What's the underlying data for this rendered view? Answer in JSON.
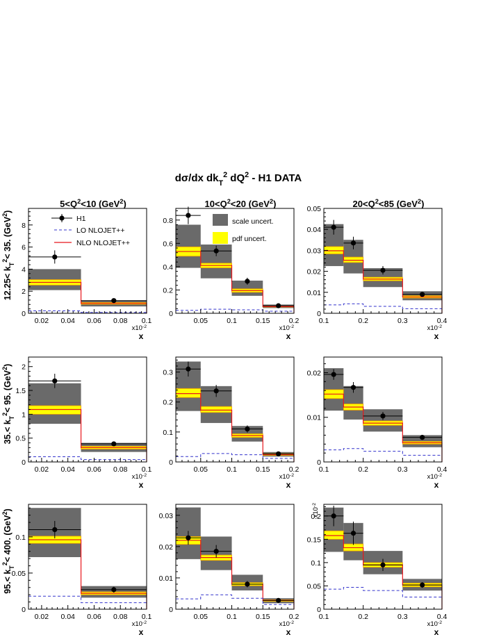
{
  "title": "dσ/dx dk_T^2 dQ^2 - H1 DATA",
  "column_titles": [
    "5<Q^2<10 (GeV^2)",
    "10<Q^2<20 (GeV^2)",
    "20<Q^2<85 (GeV^2)"
  ],
  "row_titles": [
    "12.25< k_T^2< 35. (GeV^2)",
    "35.< k_T^2< 95. (GeV^2)",
    "95.< k_T^2< 400. (GeV^2)"
  ],
  "x_label": "x",
  "x_multiplier": "x10^-2",
  "legend": {
    "h1": "H1",
    "lo": "LO   NLOJET++",
    "nlo": "NLO NLOJET++",
    "scale": "scale uncert.",
    "pdf": "pdf uncert."
  },
  "colors": {
    "data": "#000000",
    "lo": "#3333cc",
    "nlo": "#e8161c",
    "scale_band": "#6a6a6a",
    "pdf_band": "#ffff00",
    "nlo_band_edge": "#ee9900"
  },
  "chart_data": [
    {
      "type": "bar",
      "row": 0,
      "col": 0,
      "xlim": [
        0.01,
        0.1
      ],
      "ylim": [
        0,
        9.5
      ],
      "xticks": [
        0.02,
        0.04,
        0.06,
        0.08,
        0.1
      ],
      "xtick_labels": [
        "0.02",
        "0.04",
        "0.06",
        "0.08",
        "0.1"
      ],
      "yticks": [
        0,
        2,
        4,
        6,
        8
      ],
      "ytick_labels": [
        "0",
        "2",
        "4",
        "6",
        "8"
      ],
      "y_multiplier": "",
      "bins": [
        [
          0.01,
          0.05
        ],
        [
          0.05,
          0.1
        ]
      ],
      "data": {
        "x": [
          0.03,
          0.075
        ],
        "y": [
          5.1,
          1.15
        ],
        "err": [
          0.6,
          0.15
        ]
      },
      "nlo": [
        2.8,
        0.9
      ],
      "lo": [
        0.22,
        0.08
      ],
      "scale_band": [
        [
          2.1,
          4.0
        ],
        [
          0.62,
          1.15
        ]
      ],
      "pdf_band": [
        [
          2.55,
          3.05
        ],
        [
          0.82,
          0.98
        ]
      ]
    },
    {
      "type": "bar",
      "row": 0,
      "col": 1,
      "xlim": [
        0.01,
        0.2
      ],
      "ylim": [
        0,
        0.9
      ],
      "xticks": [
        0.05,
        0.1,
        0.15,
        0.2
      ],
      "xtick_labels": [
        "0.05",
        "0.1",
        "0.15",
        "0.2"
      ],
      "yticks": [
        0,
        0.2,
        0.4,
        0.6,
        0.8
      ],
      "ytick_labels": [
        "0",
        "0.2",
        "0.4",
        "0.6",
        "0.8"
      ],
      "y_multiplier": "",
      "bins": [
        [
          0.01,
          0.05
        ],
        [
          0.05,
          0.1
        ],
        [
          0.1,
          0.15
        ],
        [
          0.15,
          0.2
        ]
      ],
      "data": {
        "x": [
          0.03,
          0.075,
          0.125,
          0.175
        ],
        "y": [
          0.84,
          0.535,
          0.275,
          0.065
        ],
        "err": [
          0.075,
          0.045,
          0.03,
          0.01
        ]
      },
      "nlo": [
        0.53,
        0.41,
        0.195,
        0.058
      ],
      "lo": [
        0.025,
        0.035,
        0.03,
        0.018
      ],
      "scale_band": [
        [
          0.39,
          0.76
        ],
        [
          0.3,
          0.59
        ],
        [
          0.15,
          0.27
        ],
        [
          0.045,
          0.075
        ]
      ],
      "pdf_band": [
        [
          0.49,
          0.57
        ],
        [
          0.39,
          0.43
        ],
        [
          0.18,
          0.21
        ],
        [
          0.054,
          0.062
        ]
      ]
    },
    {
      "type": "bar",
      "row": 0,
      "col": 2,
      "xlim": [
        0.1,
        0.4
      ],
      "ylim": [
        0,
        0.05
      ],
      "xticks": [
        0.1,
        0.2,
        0.3,
        0.4
      ],
      "xtick_labels": [
        "0.1",
        "0.2",
        "0.3",
        "0.4"
      ],
      "yticks": [
        0,
        0.01,
        0.02,
        0.03,
        0.04,
        0.05
      ],
      "ytick_labels": [
        "0",
        "0.01",
        "0.02",
        "0.03",
        "0.04",
        "0.05"
      ],
      "y_multiplier": "",
      "bins": [
        [
          0.1,
          0.15
        ],
        [
          0.15,
          0.2
        ],
        [
          0.2,
          0.3
        ],
        [
          0.3,
          0.4
        ]
      ],
      "data": {
        "x": [
          0.125,
          0.175,
          0.25,
          0.35
        ],
        "y": [
          0.041,
          0.0335,
          0.0205,
          0.009
        ],
        "err": [
          0.0035,
          0.003,
          0.002,
          0.001
        ]
      },
      "nlo": [
        0.0298,
        0.0253,
        0.0163,
        0.0078
      ],
      "lo": [
        0.004,
        0.0045,
        0.0033,
        0.0022
      ],
      "scale_band": [
        [
          0.0225,
          0.0425
        ],
        [
          0.019,
          0.035
        ],
        [
          0.0125,
          0.0215
        ],
        [
          0.0062,
          0.0105
        ]
      ],
      "pdf_band": [
        [
          0.0283,
          0.0318
        ],
        [
          0.0242,
          0.0268
        ],
        [
          0.0155,
          0.0172
        ],
        [
          0.0073,
          0.0084
        ]
      ]
    },
    {
      "type": "bar",
      "row": 1,
      "col": 0,
      "xlim": [
        0.01,
        0.1
      ],
      "ylim": [
        0,
        2.2
      ],
      "xticks": [
        0.02,
        0.04,
        0.06,
        0.08,
        0.1
      ],
      "xtick_labels": [
        "0.02",
        "0.04",
        "0.06",
        "0.08",
        "0.1"
      ],
      "yticks": [
        0,
        0.5,
        1,
        1.5,
        2
      ],
      "ytick_labels": [
        "0",
        "0.5",
        "1",
        "1.5",
        "2"
      ],
      "y_multiplier": "",
      "bins": [
        [
          0.01,
          0.05
        ],
        [
          0.05,
          0.1
        ]
      ],
      "data": {
        "x": [
          0.03,
          0.075
        ],
        "y": [
          1.7,
          0.38
        ],
        "err": [
          0.15,
          0.04
        ]
      },
      "nlo": [
        1.1,
        0.3
      ],
      "lo": [
        0.11,
        0.05
      ],
      "scale_band": [
        [
          0.8,
          1.65
        ],
        [
          0.21,
          0.4
        ]
      ],
      "pdf_band": [
        [
          1.0,
          1.18
        ],
        [
          0.27,
          0.33
        ]
      ]
    },
    {
      "type": "bar",
      "row": 1,
      "col": 1,
      "xlim": [
        0.01,
        0.2
      ],
      "ylim": [
        0,
        0.35
      ],
      "xticks": [
        0.05,
        0.1,
        0.15,
        0.2
      ],
      "xtick_labels": [
        "0.05",
        "0.1",
        "0.15",
        "0.2"
      ],
      "yticks": [
        0,
        0.1,
        0.2,
        0.3
      ],
      "ytick_labels": [
        "0",
        "0.1",
        "0.2",
        "0.3"
      ],
      "y_multiplier": "",
      "bins": [
        [
          0.01,
          0.05
        ],
        [
          0.05,
          0.1
        ],
        [
          0.1,
          0.15
        ],
        [
          0.15,
          0.2
        ]
      ],
      "data": {
        "x": [
          0.03,
          0.075,
          0.125,
          0.175
        ],
        "y": [
          0.31,
          0.237,
          0.11,
          0.027
        ],
        "err": [
          0.025,
          0.02,
          0.012,
          0.004
        ]
      },
      "nlo": [
        0.228,
        0.173,
        0.088,
        0.025
      ],
      "lo": [
        0.018,
        0.028,
        0.024,
        0.012
      ],
      "scale_band": [
        [
          0.17,
          0.335
        ],
        [
          0.13,
          0.253
        ],
        [
          0.068,
          0.12
        ],
        [
          0.018,
          0.033
        ]
      ],
      "pdf_band": [
        [
          0.215,
          0.245
        ],
        [
          0.165,
          0.185
        ],
        [
          0.082,
          0.094
        ],
        [
          0.022,
          0.028
        ]
      ]
    },
    {
      "type": "bar",
      "row": 1,
      "col": 2,
      "xlim": [
        0.1,
        0.4
      ],
      "ylim": [
        0,
        0.0235
      ],
      "xticks": [
        0.1,
        0.2,
        0.3,
        0.4
      ],
      "xtick_labels": [
        "0.1",
        "0.2",
        "0.3",
        "0.4"
      ],
      "yticks": [
        0,
        0.01,
        0.02
      ],
      "ytick_labels": [
        "0",
        "0.01",
        "0.02"
      ],
      "y_multiplier": "",
      "bins": [
        [
          0.1,
          0.15
        ],
        [
          0.15,
          0.2
        ],
        [
          0.2,
          0.3
        ],
        [
          0.3,
          0.4
        ]
      ],
      "data": {
        "x": [
          0.125,
          0.175,
          0.25,
          0.35
        ],
        "y": [
          0.0196,
          0.0167,
          0.0103,
          0.0055
        ],
        "err": [
          0.0012,
          0.0012,
          0.0009,
          0.0005
        ]
      },
      "nlo": [
        0.0152,
        0.0123,
        0.0087,
        0.0043
      ],
      "lo": [
        0.0027,
        0.003,
        0.0024,
        0.0015
      ],
      "scale_band": [
        [
          0.0115,
          0.021
        ],
        [
          0.0095,
          0.017
        ],
        [
          0.0068,
          0.0118
        ],
        [
          0.0033,
          0.006
        ]
      ],
      "pdf_band": [
        [
          0.0142,
          0.0162
        ],
        [
          0.0116,
          0.013
        ],
        [
          0.0082,
          0.0092
        ],
        [
          0.004,
          0.0046
        ]
      ]
    },
    {
      "type": "bar",
      "row": 2,
      "col": 0,
      "xlim": [
        0.01,
        0.1
      ],
      "ylim": [
        0,
        0.145
      ],
      "xticks": [
        0.02,
        0.04,
        0.06,
        0.08,
        0.1
      ],
      "xtick_labels": [
        "0.02",
        "0.04",
        "0.06",
        "0.08",
        "0.1"
      ],
      "yticks": [
        0,
        0.05,
        0.1
      ],
      "ytick_labels": [
        "0",
        "0.05",
        "0.1"
      ],
      "y_multiplier": "",
      "bins": [
        [
          0.01,
          0.05
        ],
        [
          0.05,
          0.1
        ]
      ],
      "data": {
        "x": [
          0.03,
          0.075
        ],
        "y": [
          0.11,
          0.027
        ],
        "err": [
          0.012,
          0.004
        ]
      },
      "nlo": [
        0.096,
        0.022
      ],
      "lo": [
        0.018,
        0.009
      ],
      "scale_band": [
        [
          0.072,
          0.14
        ],
        [
          0.016,
          0.032
        ]
      ],
      "pdf_band": [
        [
          0.091,
          0.101
        ],
        [
          0.02,
          0.024
        ]
      ]
    },
    {
      "type": "bar",
      "row": 2,
      "col": 1,
      "xlim": [
        0.01,
        0.2
      ],
      "ylim": [
        0,
        0.0335
      ],
      "xticks": [
        0.05,
        0.1,
        0.15,
        0.2
      ],
      "xtick_labels": [
        "0.05",
        "0.1",
        "0.15",
        "0.2"
      ],
      "yticks": [
        0,
        0.01,
        0.02,
        0.03
      ],
      "ytick_labels": [
        "0",
        "0.01",
        "0.02",
        "0.03"
      ],
      "y_multiplier": "",
      "bins": [
        [
          0.01,
          0.05
        ],
        [
          0.05,
          0.1
        ],
        [
          0.1,
          0.15
        ],
        [
          0.15,
          0.2
        ]
      ],
      "data": {
        "x": [
          0.03,
          0.075,
          0.125,
          0.175
        ],
        "y": [
          0.0228,
          0.0185,
          0.008,
          0.0028
        ],
        "err": [
          0.0022,
          0.002,
          0.001,
          0.0004
        ]
      },
      "nlo": [
        0.022,
        0.0165,
        0.008,
        0.0028
      ],
      "lo": [
        0.0033,
        0.0046,
        0.0035,
        0.0015
      ],
      "scale_band": [
        [
          0.016,
          0.0325
        ],
        [
          0.0125,
          0.0232
        ],
        [
          0.006,
          0.011
        ],
        [
          0.0019,
          0.0035
        ]
      ],
      "pdf_band": [
        [
          0.0207,
          0.0232
        ],
        [
          0.0156,
          0.0173
        ],
        [
          0.0075,
          0.0085
        ],
        [
          0.0025,
          0.003
        ]
      ]
    },
    {
      "type": "bar",
      "row": 2,
      "col": 2,
      "xlim": [
        0.1,
        0.4
      ],
      "ylim": [
        0,
        0.225
      ],
      "xticks": [
        0.1,
        0.2,
        0.3,
        0.4
      ],
      "xtick_labels": [
        "0.1",
        "0.2",
        "0.3",
        "0.4"
      ],
      "yticks": [
        0,
        0.05,
        0.1,
        0.15,
        0.2
      ],
      "ytick_labels": [
        "0",
        "0.05",
        "0.1",
        "0.15",
        "0.2"
      ],
      "y_multiplier": "x10^-2",
      "bins": [
        [
          0.1,
          0.15
        ],
        [
          0.15,
          0.2
        ],
        [
          0.2,
          0.3
        ],
        [
          0.3,
          0.4
        ]
      ],
      "data": {
        "x": [
          0.125,
          0.175,
          0.25,
          0.35
        ],
        "y": [
          0.2,
          0.163,
          0.095,
          0.052
        ],
        "err": [
          0.022,
          0.025,
          0.013,
          0.006
        ]
      },
      "nlo": [
        0.158,
        0.132,
        0.095,
        0.052
      ],
      "lo": [
        0.043,
        0.047,
        0.04,
        0.026
      ],
      "scale_band": [
        [
          0.123,
          0.218
        ],
        [
          0.105,
          0.185
        ],
        [
          0.075,
          0.125
        ],
        [
          0.04,
          0.065
        ]
      ],
      "pdf_band": [
        [
          0.15,
          0.168
        ],
        [
          0.125,
          0.14
        ],
        [
          0.09,
          0.1
        ],
        [
          0.048,
          0.056
        ]
      ]
    }
  ]
}
